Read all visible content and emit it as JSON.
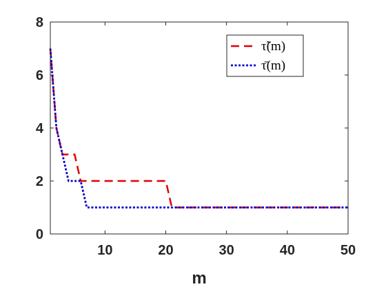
{
  "chart_data": {
    "type": "line",
    "title": "",
    "xlabel": "m",
    "ylabel": "",
    "xlim": [
      1,
      50
    ],
    "ylim": [
      0,
      8
    ],
    "xticks": [
      10,
      20,
      30,
      40,
      50
    ],
    "yticks": [
      0,
      2,
      4,
      6,
      8
    ],
    "grid": false,
    "legend_position": "top-right",
    "series": [
      {
        "name": "τ̃(m)",
        "color": "#e00000",
        "style": "dashed",
        "x": [
          1,
          2,
          3,
          4,
          5,
          6,
          7,
          8,
          9,
          10,
          11,
          12,
          13,
          14,
          15,
          16,
          17,
          18,
          19,
          20,
          21,
          22,
          23,
          24,
          25,
          26,
          27,
          28,
          29,
          30,
          31,
          32,
          33,
          34,
          35,
          36,
          37,
          38,
          39,
          40,
          41,
          42,
          43,
          44,
          45,
          46,
          47,
          48,
          49,
          50
        ],
        "y": [
          7,
          4,
          3,
          3,
          3,
          2,
          2,
          2,
          2,
          2,
          2,
          2,
          2,
          2,
          2,
          2,
          2,
          2,
          2,
          2,
          1,
          1,
          1,
          1,
          1,
          1,
          1,
          1,
          1,
          1,
          1,
          1,
          1,
          1,
          1,
          1,
          1,
          1,
          1,
          1,
          1,
          1,
          1,
          1,
          1,
          1,
          1,
          1,
          1,
          1
        ]
      },
      {
        "name": "τ̄(m)",
        "color": "#0000cc",
        "style": "dotted",
        "x": [
          1,
          2,
          3,
          4,
          5,
          6,
          7,
          8,
          9,
          10,
          11,
          12,
          13,
          14,
          15,
          16,
          17,
          18,
          19,
          20,
          21,
          22,
          23,
          24,
          25,
          26,
          27,
          28,
          29,
          30,
          31,
          32,
          33,
          34,
          35,
          36,
          37,
          38,
          39,
          40,
          41,
          42,
          43,
          44,
          45,
          46,
          47,
          48,
          49,
          50
        ],
        "y": [
          7,
          4,
          3,
          2,
          2,
          2,
          1,
          1,
          1,
          1,
          1,
          1,
          1,
          1,
          1,
          1,
          1,
          1,
          1,
          1,
          1,
          1,
          1,
          1,
          1,
          1,
          1,
          1,
          1,
          1,
          1,
          1,
          1,
          1,
          1,
          1,
          1,
          1,
          1,
          1,
          1,
          1,
          1,
          1,
          1,
          1,
          1,
          1,
          1,
          1
        ]
      }
    ]
  }
}
